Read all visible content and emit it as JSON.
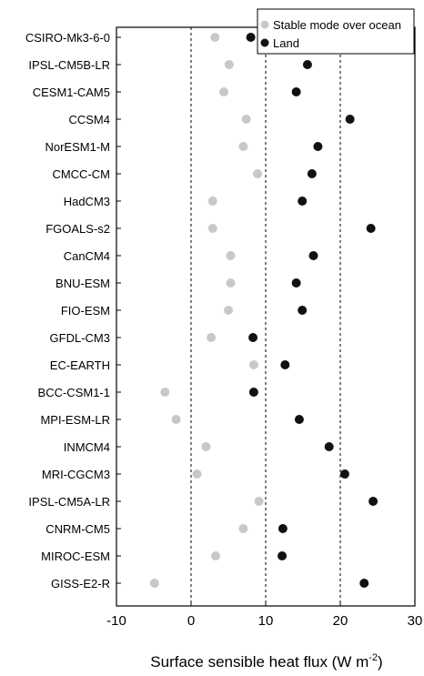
{
  "chart_data": {
    "type": "scatter",
    "xlabel": "Surface sensible heat flux (W m",
    "xlabel_sup": "-2",
    "xlabel_close": ")",
    "xlim": [
      -10,
      30
    ],
    "xticks": [
      -10,
      0,
      10,
      20,
      30
    ],
    "reference_lines": [
      0,
      10,
      20
    ],
    "categories": [
      "CSIRO-Mk3-6-0",
      "IPSL-CM5B-LR",
      "CESM1-CAM5",
      "CCSM4",
      "NorESM1-M",
      "CMCC-CM",
      "HadCM3",
      "FGOALS-s2",
      "CanCM4",
      "BNU-ESM",
      "FIO-ESM",
      "GFDL-CM3",
      "EC-EARTH",
      "BCC-CSM1-1",
      "MPI-ESM-LR",
      "INMCM4",
      "MRI-CGCM3",
      "IPSL-CM5A-LR",
      "CNRM-CM5",
      "MIROC-ESM",
      "GISS-E2-R"
    ],
    "series": [
      {
        "name": "Stable mode over ocean",
        "color": "#c8c8c8",
        "values": [
          3.2,
          5.1,
          4.4,
          7.4,
          7.0,
          8.9,
          2.9,
          2.9,
          5.3,
          5.3,
          5.0,
          2.7,
          8.4,
          -3.5,
          -2.0,
          2.0,
          0.8,
          9.1,
          7.0,
          3.3,
          -4.9
        ]
      },
      {
        "name": "Land",
        "color": "#111111",
        "values": [
          8.0,
          15.6,
          14.1,
          21.3,
          17.0,
          16.2,
          14.9,
          24.1,
          16.4,
          14.1,
          14.9,
          8.3,
          12.6,
          8.4,
          14.5,
          18.5,
          20.6,
          24.4,
          12.3,
          12.2,
          23.2
        ]
      }
    ],
    "legend_position": "top-right",
    "grid": false
  }
}
